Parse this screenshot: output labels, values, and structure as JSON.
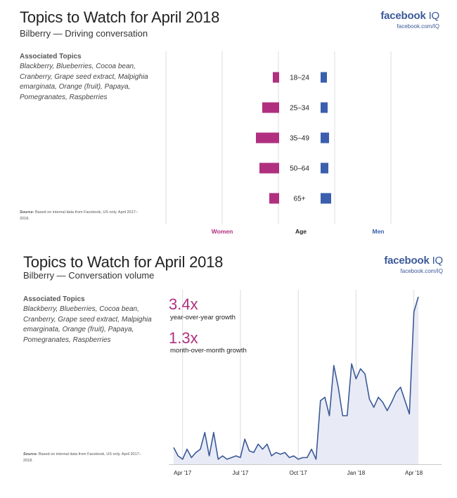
{
  "brand": {
    "name": "facebook",
    "suffix": "IQ",
    "url": "facebook.com/IQ"
  },
  "panel1": {
    "title": "Topics to Watch for April 2018",
    "subtitle": "Bilberry — Driving conversation",
    "topics_heading": "Associated Topics",
    "topics": "Blackberry, Blueberries, Cocoa bean, Cranberry, Grape seed extract, Malpighia emarginata, Orange (fruit), Papaya, Pomegranates, Raspberries",
    "source_label": "Source:",
    "source_text": "Based on internal data from Facebook, US only. April 2017–2018."
  },
  "panel2": {
    "title": "Topics to Watch for April 2018",
    "subtitle": "Bilberry — Conversation volume",
    "topics_heading": "Associated Topics",
    "topics": "Blackberry, Blueberries, Cocoa bean, Cranberry, Grape seed extract, Malpighia emarginata, Orange (fruit), Papaya, Pomegranates, Raspberries",
    "source_label": "Source:",
    "source_text": "Based on internal data from Facebook, US only. April 2017–2018.",
    "stat1_value": "3.4x",
    "stat1_label": "year-over-year growth",
    "stat2_value": "1.3x",
    "stat2_label": "month-over-month growth"
  },
  "colors": {
    "women": "#b0307f",
    "men": "#3b5fad",
    "line": "#3b5998",
    "area": "#e8ebf5",
    "grid": "#dcdcdc"
  },
  "chart_data": [
    {
      "type": "bar",
      "orientation": "horizontal-diverging",
      "categories": [
        "18–24",
        "25–34",
        "35–49",
        "50–64",
        "65+"
      ],
      "series": [
        {
          "name": "Women",
          "values": [
            9,
            24,
            33,
            28,
            14
          ]
        },
        {
          "name": "Men",
          "values": [
            9,
            10,
            12,
            11,
            15
          ]
        }
      ],
      "xlabel_left": "Women",
      "xlabel_center": "Age",
      "xlabel_right": "Men"
    },
    {
      "type": "area",
      "x_tick_labels": [
        "Apr '17",
        "Jul '17",
        "Oct '17",
        "Jan '18",
        "Apr '18"
      ],
      "x_tick_positions": [
        2,
        15,
        28,
        41,
        54
      ],
      "ylim": [
        0,
        100
      ],
      "values": [
        10,
        5,
        3,
        9,
        4,
        7,
        9,
        19,
        5,
        19,
        3,
        5,
        3,
        4,
        5,
        4,
        15,
        8,
        7,
        12,
        9,
        12,
        5,
        7,
        6,
        7,
        4,
        5,
        3,
        4,
        4,
        9,
        3,
        38,
        40,
        29,
        59,
        46,
        29,
        29,
        60,
        51,
        57,
        54,
        39,
        34,
        40,
        37,
        32,
        37,
        43,
        46,
        38,
        30,
        91,
        100
      ],
      "annotations": [
        "3.4x year-over-year growth",
        "1.3x month-over-month growth"
      ]
    }
  ]
}
